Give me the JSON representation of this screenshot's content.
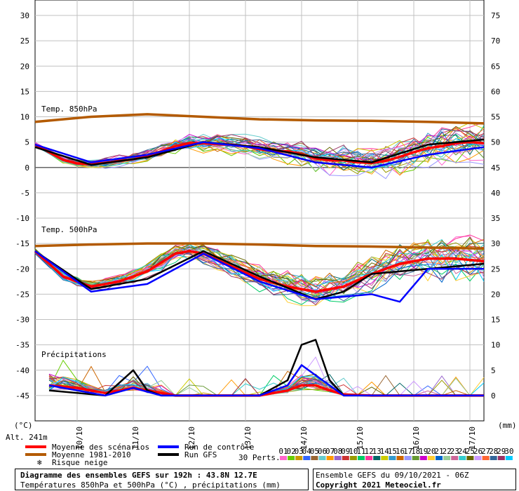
{
  "chart_data": {
    "type": "line",
    "title": "Diagramme des ensembles GEFS sur 192h : 43.8N 12.7E",
    "subtitle": "Températures 850hPa et 500hPa (°C) , précipitations (mm)",
    "run_info": "Ensemble GEFS du 09/10/2021 - 06Z",
    "copyright": "Copyright 2021 Meteociel.fr",
    "left_axis": {
      "unit": "(°C)",
      "ylim": [
        -50,
        30
      ],
      "ticks": [
        30,
        25,
        20,
        15,
        10,
        5,
        0,
        -5,
        -10,
        -15,
        -20,
        -25,
        -30,
        -35,
        -40,
        -45
      ]
    },
    "right_axis": {
      "unit": "(mm)",
      "ylim": [
        -5,
        75
      ],
      "ticks": [
        75,
        70,
        65,
        60,
        55,
        50,
        45,
        40,
        35,
        30,
        25,
        20,
        15,
        10,
        5,
        0
      ]
    },
    "altitude": "Alt. 241m",
    "x_axis": {
      "range": [
        0,
        192
      ],
      "ticks": [
        {
          "label": "10/10",
          "hour": 18
        },
        {
          "label": "11/10",
          "hour": 42
        },
        {
          "label": "12/10",
          "hour": 66
        },
        {
          "label": "13/10",
          "hour": 90
        },
        {
          "label": "14/10",
          "hour": 114
        },
        {
          "label": "15/10",
          "hour": 138
        },
        {
          "label": "16/10",
          "hour": 162
        },
        {
          "label": "17/10",
          "hour": 186
        }
      ]
    },
    "panel_labels": [
      "Temp. 850hPa",
      "Temp. 500hPa",
      "Précipitations"
    ],
    "series": [
      {
        "name": "Moyenne 1981-2010",
        "color": "#b35a00",
        "panel": "t850",
        "hours": [
          0,
          24,
          48,
          72,
          96,
          120,
          144,
          168,
          192
        ],
        "values": [
          9.0,
          10.0,
          10.5,
          10.0,
          9.5,
          9.3,
          9.2,
          9.0,
          8.7
        ]
      },
      {
        "name": "Moyenne des scénarios",
        "color": "#ff0000",
        "panel": "t850",
        "hours": [
          0,
          6,
          12,
          18,
          24,
          30,
          36,
          42,
          48,
          54,
          60,
          66,
          72,
          78,
          84,
          90,
          96,
          102,
          108,
          114,
          120,
          126,
          132,
          138,
          144,
          150,
          156,
          162,
          168,
          174,
          180,
          186,
          192
        ],
        "values": [
          4.5,
          3.0,
          1.5,
          0.8,
          0.6,
          0.9,
          1.3,
          1.6,
          2.2,
          3.2,
          4.2,
          4.8,
          4.8,
          4.6,
          4.5,
          4.2,
          3.6,
          3.2,
          3.2,
          2.6,
          1.8,
          1.4,
          1.4,
          1.0,
          0.9,
          1.3,
          2.1,
          3.0,
          3.8,
          4.2,
          4.8,
          5.0,
          4.8
        ]
      },
      {
        "name": "Run GFS",
        "color": "#000000",
        "panel": "t850",
        "hours": [
          0,
          24,
          48,
          72,
          96,
          120,
          144,
          168,
          192
        ],
        "values": [
          4.0,
          0.5,
          2.0,
          5.0,
          4.0,
          2.0,
          1.0,
          4.5,
          5.5
        ]
      },
      {
        "name": "Run de contrôle",
        "color": "#0000ff",
        "panel": "t850",
        "hours": [
          0,
          24,
          48,
          72,
          96,
          120,
          144,
          168,
          192
        ],
        "values": [
          4.5,
          1.0,
          2.5,
          5.0,
          3.8,
          1.0,
          0.0,
          2.5,
          4.0
        ]
      },
      {
        "name": "Moyenne 1981-2010",
        "color": "#b35a00",
        "panel": "t500",
        "hours": [
          0,
          24,
          48,
          72,
          96,
          120,
          144,
          168,
          192
        ],
        "values": [
          -15.5,
          -15.2,
          -15.0,
          -15.0,
          -15.2,
          -15.5,
          -15.6,
          -15.8,
          -16.0
        ]
      },
      {
        "name": "Moyenne des scénarios",
        "color": "#ff0000",
        "panel": "t500",
        "hours": [
          0,
          12,
          24,
          36,
          48,
          60,
          66,
          72,
          84,
          96,
          108,
          120,
          132,
          144,
          156,
          168,
          180,
          192
        ],
        "values": [
          -16.5,
          -21.5,
          -23.5,
          -22.5,
          -20.5,
          -17.0,
          -16.5,
          -17.0,
          -19.5,
          -22.0,
          -23.5,
          -24.5,
          -23.5,
          -21.0,
          -19.0,
          -18.0,
          -18.0,
          -18.5
        ]
      },
      {
        "name": "Run GFS",
        "color": "#000000",
        "panel": "t500",
        "hours": [
          0,
          24,
          48,
          72,
          96,
          120,
          132,
          144,
          168,
          192
        ],
        "values": [
          -16.5,
          -24.0,
          -22.0,
          -16.5,
          -21.5,
          -26.0,
          -24.5,
          -21.0,
          -20.0,
          -19.0
        ]
      },
      {
        "name": "Run de contrôle",
        "color": "#0000ff",
        "panel": "t500",
        "hours": [
          0,
          24,
          48,
          72,
          96,
          120,
          144,
          156,
          168,
          192
        ],
        "values": [
          -16.5,
          -24.5,
          -23.0,
          -17.0,
          -22.5,
          -26.0,
          -25.0,
          -26.5,
          -20.0,
          -20.0
        ]
      },
      {
        "name": "Moyenne des scénarios",
        "color": "#ff0000",
        "panel": "precip",
        "hours": [
          6,
          18,
          30,
          42,
          48,
          60,
          72,
          84,
          96,
          108,
          114,
          120,
          126,
          132,
          144,
          168,
          192
        ],
        "values": [
          2.0,
          1.5,
          0.5,
          1.5,
          1.0,
          0.0,
          0.0,
          0.0,
          0.0,
          1.0,
          2.0,
          2.0,
          1.0,
          0.2,
          0.0,
          0.0,
          0.0
        ]
      },
      {
        "name": "Run GFS",
        "color": "#000000",
        "panel": "precip",
        "hours": [
          6,
          30,
          42,
          48,
          54,
          66,
          96,
          108,
          114,
          120,
          126,
          132,
          144,
          192
        ],
        "values": [
          1.0,
          0.0,
          5.0,
          1.0,
          0.0,
          0.0,
          0.0,
          3.0,
          10.0,
          11.0,
          3.0,
          0.0,
          0.0,
          0.0
        ]
      },
      {
        "name": "Run de contrôle",
        "color": "#0000ff",
        "panel": "precip",
        "hours": [
          6,
          30,
          42,
          54,
          66,
          96,
          108,
          114,
          120,
          126,
          132,
          144,
          192
        ],
        "values": [
          2.0,
          0.0,
          1.5,
          0.0,
          0.0,
          0.0,
          2.0,
          6.0,
          4.0,
          2.0,
          0.0,
          0.0,
          0.0
        ]
      }
    ],
    "legend": {
      "items": [
        {
          "label": "Moyenne des scénarios",
          "color": "#ff0000"
        },
        {
          "label": "Moyenne 1981-2010",
          "color": "#b35a00"
        },
        {
          "label": "Risque neige",
          "color": "#3399ff"
        },
        {
          "label": "Run de contrôle",
          "color": "#0000ff"
        },
        {
          "label": "Run GFS",
          "color": "#000000"
        }
      ],
      "perts_label": "30 Perts.",
      "pert_numbers": [
        "01",
        "02",
        "03",
        "04",
        "05",
        "06",
        "07",
        "08",
        "09",
        "10",
        "11",
        "12",
        "13",
        "14",
        "15",
        "16",
        "17",
        "18",
        "19",
        "20",
        "21",
        "22",
        "23",
        "24",
        "25",
        "26",
        "27",
        "28",
        "29",
        "30"
      ],
      "pert_colors": [
        "#ff66cc",
        "#66cc00",
        "#cc9900",
        "#3366ff",
        "#996633",
        "#66cccc",
        "#ff9900",
        "#9966cc",
        "#cc3333",
        "#999900",
        "#00cc66",
        "#ff3399",
        "#006666",
        "#cccc00",
        "#3399cc",
        "#cc6600",
        "#9999ff",
        "#669933",
        "#cc00cc",
        "#ffcc33",
        "#0066cc",
        "#99cc99",
        "#cc6699",
        "#33cccc",
        "#666600",
        "#cc99ff",
        "#ff6633",
        "#336699",
        "#993366",
        "#00ccff"
      ]
    }
  }
}
